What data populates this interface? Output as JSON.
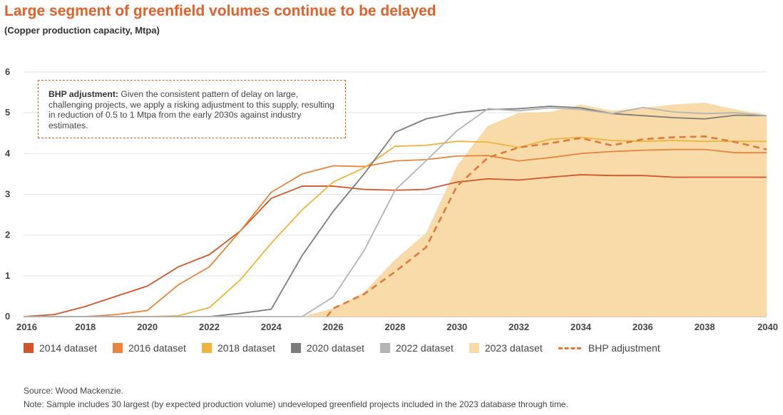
{
  "chart_data": {
    "type": "line",
    "title": "Large segment of greenfield volumes continue to be delayed",
    "subtitle": "(Copper production capacity, Mtpa)",
    "xlabel": "",
    "ylabel": "",
    "xlim": [
      2016,
      2040
    ],
    "ylim": [
      0,
      6
    ],
    "x_ticks": [
      2016,
      2018,
      2020,
      2022,
      2024,
      2026,
      2028,
      2030,
      2032,
      2034,
      2036,
      2038,
      2040
    ],
    "y_ticks": [
      0,
      1,
      2,
      3,
      4,
      5,
      6
    ],
    "grid": "horizontal",
    "legend_position": "bottom",
    "series": [
      {
        "name": "2014 dataset",
        "style": "line",
        "color": "#d4552b",
        "x": [
          2016,
          2017,
          2018,
          2019,
          2020,
          2021,
          2022,
          2023,
          2024,
          2025,
          2026,
          2027,
          2028,
          2029,
          2030,
          2031,
          2032,
          2033,
          2034,
          2035,
          2036,
          2037,
          2038,
          2039,
          2040
        ],
        "y": [
          0,
          0.05,
          0.25,
          0.5,
          0.75,
          1.22,
          1.52,
          2.1,
          2.9,
          3.2,
          3.2,
          3.12,
          3.1,
          3.12,
          3.3,
          3.38,
          3.35,
          3.42,
          3.48,
          3.46,
          3.46,
          3.42,
          3.42,
          3.42,
          3.42
        ]
      },
      {
        "name": "2016 dataset",
        "style": "line",
        "color": "#e8843c",
        "x": [
          2016,
          2017,
          2018,
          2019,
          2020,
          2021,
          2022,
          2023,
          2024,
          2025,
          2026,
          2027,
          2028,
          2029,
          2030,
          2031,
          2032,
          2033,
          2034,
          2035,
          2036,
          2037,
          2038,
          2039,
          2040
        ],
        "y": [
          0,
          0,
          0,
          0.05,
          0.15,
          0.78,
          1.22,
          2.1,
          3.05,
          3.5,
          3.7,
          3.68,
          3.82,
          3.85,
          3.94,
          3.95,
          3.82,
          3.9,
          4,
          4.05,
          4.08,
          4.1,
          4.1,
          4.02,
          4.02
        ]
      },
      {
        "name": "2018 dataset",
        "style": "line",
        "color": "#f0b43c",
        "x": [
          2016,
          2017,
          2018,
          2019,
          2020,
          2021,
          2022,
          2023,
          2024,
          2025,
          2026,
          2027,
          2028,
          2029,
          2030,
          2031,
          2032,
          2033,
          2034,
          2035,
          2036,
          2037,
          2038,
          2039,
          2040
        ],
        "y": [
          0,
          0,
          0,
          0,
          0,
          0.02,
          0.22,
          0.9,
          1.8,
          2.62,
          3.3,
          3.65,
          4.18,
          4.2,
          4.3,
          4.28,
          4.15,
          4.35,
          4.4,
          4.32,
          4.3,
          4.32,
          4.3,
          4.3,
          4.3
        ]
      },
      {
        "name": "2020 dataset",
        "style": "line",
        "color": "#7c7c7c",
        "x": [
          2016,
          2017,
          2018,
          2019,
          2020,
          2021,
          2022,
          2023,
          2024,
          2025,
          2026,
          2027,
          2028,
          2029,
          2030,
          2031,
          2032,
          2033,
          2034,
          2035,
          2036,
          2037,
          2038,
          2039,
          2040
        ],
        "y": [
          0,
          0,
          0,
          0,
          0,
          0,
          0,
          0.08,
          0.18,
          1.5,
          2.58,
          3.5,
          4.52,
          4.85,
          5,
          5.08,
          5.1,
          5.16,
          5.12,
          4.98,
          4.93,
          4.88,
          4.85,
          4.94,
          4.93
        ]
      },
      {
        "name": "2022 dataset",
        "style": "line",
        "color": "#b4b4b4",
        "x": [
          2016,
          2017,
          2018,
          2019,
          2020,
          2021,
          2022,
          2023,
          2024,
          2025,
          2026,
          2027,
          2028,
          2029,
          2030,
          2031,
          2032,
          2033,
          2034,
          2035,
          2036,
          2037,
          2038,
          2039,
          2040
        ],
        "y": [
          0,
          0,
          0,
          0,
          0,
          0,
          0,
          0,
          0,
          0,
          0.48,
          1.62,
          3.1,
          3.82,
          4.56,
          5.1,
          5.05,
          5.12,
          5.08,
          4.98,
          5.13,
          5.02,
          4.98,
          5,
          4.93
        ]
      },
      {
        "name": "2023 dataset",
        "style": "area",
        "color": "#f8dba8",
        "x": [
          2016,
          2017,
          2018,
          2019,
          2020,
          2021,
          2022,
          2023,
          2024,
          2025,
          2026,
          2027,
          2028,
          2029,
          2030,
          2031,
          2032,
          2033,
          2034,
          2035,
          2036,
          2037,
          2038,
          2039,
          2040
        ],
        "y": [
          0,
          0,
          0,
          0,
          0,
          0,
          0,
          0,
          0,
          0,
          0.2,
          0.6,
          1.4,
          2.05,
          3.7,
          4.68,
          5,
          5.02,
          5.2,
          5.05,
          5.12,
          5.2,
          5.25,
          5.08,
          4.95
        ]
      },
      {
        "name": "BHP adjustment",
        "style": "dashed",
        "color": "#e07a3a",
        "x": [
          2025.8,
          2026,
          2027,
          2028,
          2029,
          2030,
          2031,
          2032,
          2033,
          2034,
          2035,
          2036,
          2037,
          2038,
          2039,
          2040
        ],
        "y": [
          0,
          0.2,
          0.55,
          1.1,
          1.7,
          3.2,
          3.9,
          4.15,
          4.25,
          4.38,
          4.2,
          4.35,
          4.4,
          4.42,
          4.28,
          4.1
        ]
      }
    ],
    "annotation": {
      "bold": "BHP adjustment:",
      "text": " Given the consistent pattern of delay on large, challenging projects, we apply a risking adjustment to this supply, resulting in reduction of 0.5 to 1 Mtpa from the early 2030s against industry estimates."
    }
  },
  "footer": {
    "source": "Source: Wood Mackenzie.",
    "note": "Note: Sample includes 30 largest (by expected production volume) undeveloped greenfield projects included in the 2023 database through time."
  }
}
